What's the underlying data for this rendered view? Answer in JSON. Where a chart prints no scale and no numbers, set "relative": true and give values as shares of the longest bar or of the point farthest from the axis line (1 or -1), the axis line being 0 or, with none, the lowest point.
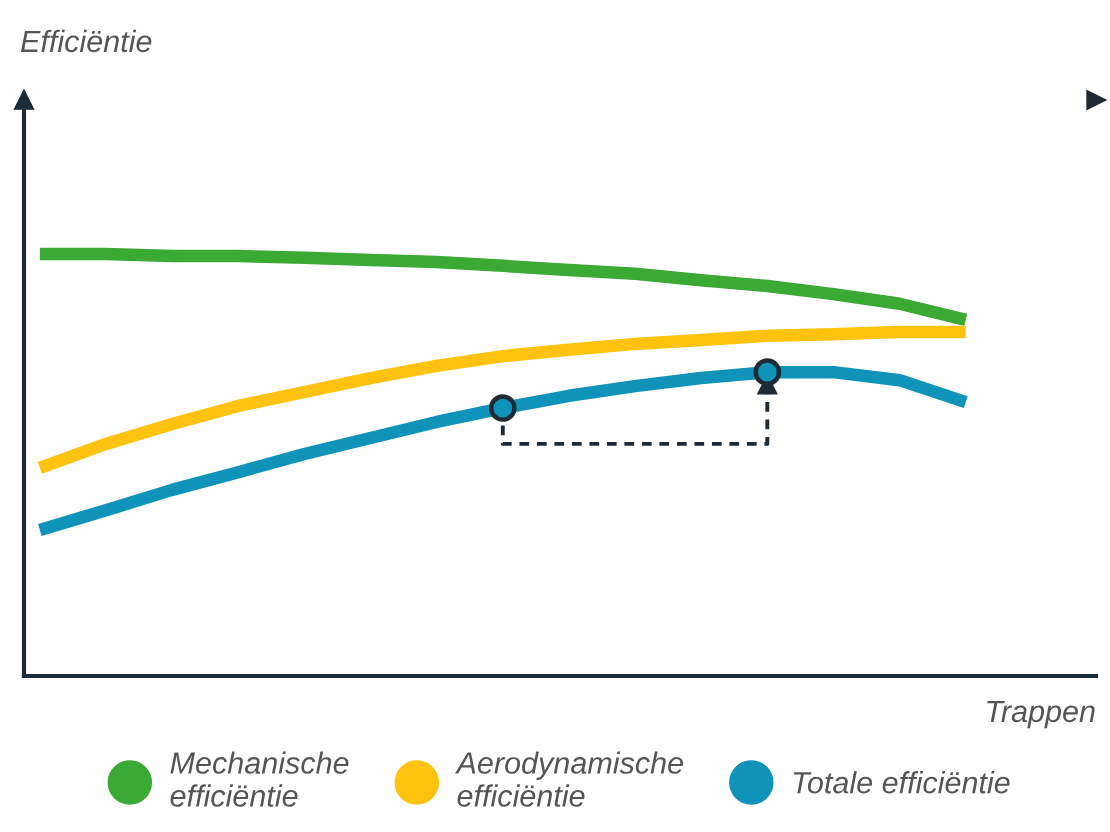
{
  "chart_data": {
    "type": "line",
    "relative": true,
    "annotations": [
      "Efficiëntie"
    ],
    "xlabel": "Trappen",
    "legend": "bottom",
    "marker": "none",
    "line_style": "solid",
    "categories": [
      null,
      null,
      null,
      null,
      null,
      null,
      null,
      null,
      null,
      null,
      null,
      null,
      null,
      null,
      null
    ],
    "series": [
      {
        "name": "Mechanische\nefficiëntie",
        "color": "#3aaa35",
        "values": [
          1.0,
          1.0,
          0.995,
          0.995,
          0.991,
          0.986,
          0.981,
          0.972,
          0.962,
          0.953,
          0.938,
          0.924,
          0.905,
          0.882,
          0.844
        ]
      },
      {
        "name": "Aerodynamische\nefficiëntie",
        "color": "#ffc20e",
        "values": [
          0.493,
          0.55,
          0.597,
          0.64,
          0.673,
          0.706,
          0.735,
          0.758,
          0.773,
          0.787,
          0.796,
          0.806,
          0.81,
          0.815,
          0.815
        ]
      },
      {
        "name": "Totale efficiëntie",
        "color": "#0f93b8",
        "values": [
          0.346,
          0.393,
          0.441,
          0.483,
          0.526,
          0.564,
          0.602,
          0.635,
          0.664,
          0.687,
          0.706,
          0.72,
          0.72,
          0.701,
          0.649
        ]
      }
    ]
  }
}
